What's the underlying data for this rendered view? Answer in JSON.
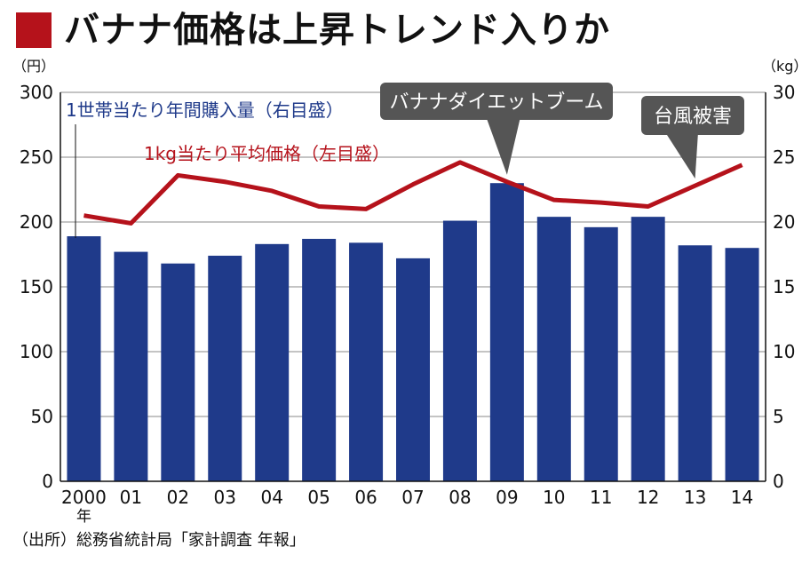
{
  "title": "バナナ価格は上昇トレンド入りか",
  "source": "（出所）総務省統計局「家計調査 年報」",
  "colors": {
    "bar": "#1f3a8a",
    "line": "#b5121b",
    "callout": "#555555",
    "title_square": "#b5121b"
  },
  "chart_data": {
    "type": "bar+line",
    "categories": [
      "2000",
      "01",
      "02",
      "03",
      "04",
      "05",
      "06",
      "07",
      "08",
      "09",
      "10",
      "11",
      "12",
      "13",
      "14"
    ],
    "first_category_suffix": "年",
    "left_axis": {
      "unit": "（円）",
      "ylim": [
        0,
        300
      ],
      "ticks": [
        0,
        50,
        100,
        150,
        200,
        250,
        300
      ]
    },
    "right_axis": {
      "unit": "（kg）",
      "ylim": [
        0,
        30
      ],
      "ticks": [
        0,
        5,
        10,
        15,
        20,
        25,
        30
      ]
    },
    "series": [
      {
        "name": "1世帯当たり年間購入量（右目盛）",
        "type": "bar",
        "axis": "right",
        "values": [
          18.9,
          17.7,
          16.8,
          17.4,
          18.3,
          18.7,
          18.4,
          17.2,
          20.1,
          23.0,
          20.4,
          19.6,
          20.4,
          18.2,
          18.0
        ]
      },
      {
        "name": "1kg当たり平均価格（左目盛）",
        "type": "line",
        "axis": "left",
        "values": [
          205,
          199,
          236,
          231,
          224,
          212,
          210,
          229,
          246,
          231,
          217,
          215,
          212,
          228,
          244
        ]
      }
    ],
    "annotations": [
      {
        "text": "バナナダイエットブーム",
        "category": "09"
      },
      {
        "text": "台風被害",
        "category": "13"
      }
    ]
  }
}
